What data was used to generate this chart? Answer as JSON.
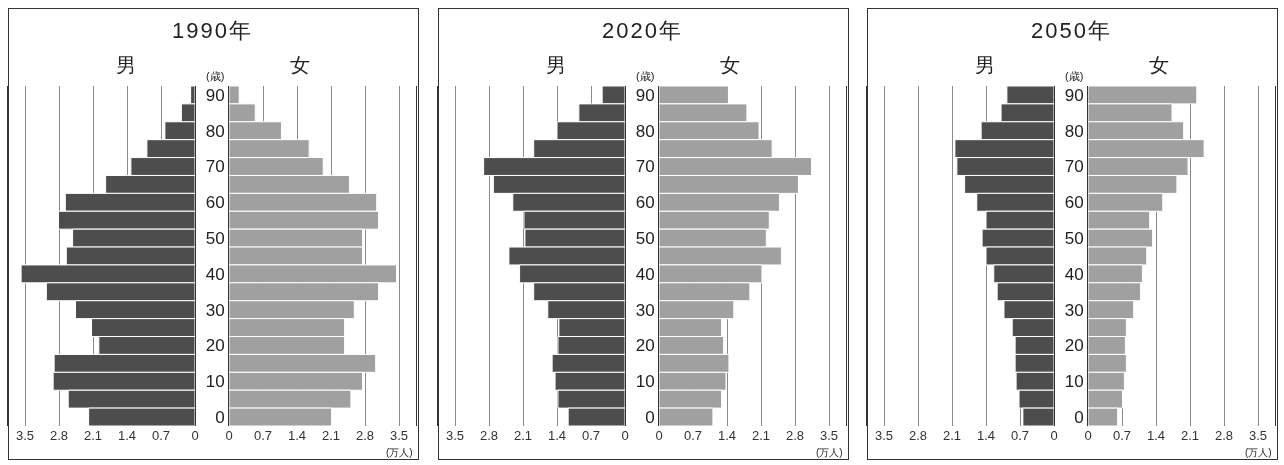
{
  "chart_data": [
    {
      "type": "bar",
      "orientation": "horizontal",
      "title": "1990年",
      "categories": [
        "90",
        null,
        "80",
        null,
        "70",
        null,
        "60",
        null,
        "50",
        null,
        "40",
        null,
        "30",
        null,
        "20",
        null,
        "10",
        null,
        "0"
      ],
      "series": [
        {
          "name": "男",
          "color": "#4d4d4d",
          "values": [
            0.09,
            0.28,
            0.62,
            0.99,
            1.32,
            1.84,
            2.67,
            2.81,
            2.52,
            2.65,
            3.58,
            3.06,
            2.46,
            2.13,
            1.98,
            2.9,
            2.92,
            2.61,
            2.19
          ]
        }
      ],
      "xlim": [
        3.85,
        0
      ],
      "xticks": [
        0,
        0.7,
        1.4,
        2.1,
        2.8,
        3.5
      ],
      "grid": "x",
      "tick_labels": "x"
    },
    {
      "type": "bar",
      "orientation": "horizontal",
      "ylabel": "(歳)",
      "xlabel": "(万人)",
      "categories": [
        "90",
        null,
        "80",
        null,
        "70",
        null,
        "60",
        null,
        "50",
        null,
        "40",
        null,
        "30",
        null,
        "20",
        null,
        "10",
        null,
        "0"
      ],
      "series": [
        {
          "name": "女",
          "color": "#a0a0a0",
          "values": [
            0.21,
            0.54,
            1.08,
            1.65,
            1.94,
            2.48,
            3.04,
            3.08,
            2.75,
            2.75,
            3.45,
            3.08,
            2.58,
            2.38,
            2.38,
            3.02,
            2.75,
            2.51,
            2.11
          ]
        }
      ],
      "xlim": [
        0,
        3.85
      ],
      "xticks": [
        0,
        0.7,
        1.4,
        2.1,
        2.8,
        3.5
      ],
      "grid": "x"
    },
    {
      "type": "bar",
      "orientation": "horizontal",
      "title": "2020年",
      "categories": [
        "90",
        null,
        "80",
        null,
        "70",
        null,
        "60",
        null,
        "50",
        null,
        "40",
        null,
        "30",
        null,
        "20",
        null,
        "10",
        null,
        "0"
      ],
      "series": [
        {
          "name": "男",
          "color": "#4d4d4d",
          "values": [
            0.47,
            0.95,
            1.4,
            1.88,
            2.91,
            2.71,
            2.31,
            2.08,
            2.06,
            2.39,
            2.17,
            1.88,
            1.59,
            1.36,
            1.38,
            1.5,
            1.44,
            1.38,
            1.17
          ]
        }
      ],
      "xlim": [
        3.85,
        0
      ],
      "xticks": [
        0,
        0.7,
        1.4,
        2.1,
        2.8,
        3.5
      ],
      "grid": "x",
      "tick_labels": "x"
    },
    {
      "type": "bar",
      "orientation": "horizontal",
      "ylabel": "(歳)",
      "xlabel": "(万人)",
      "categories": [
        "90",
        null,
        "80",
        null,
        "70",
        null,
        "60",
        null,
        "50",
        null,
        "40",
        null,
        "30",
        null,
        "20",
        null,
        "10",
        null,
        "0"
      ],
      "series": [
        {
          "name": "女",
          "color": "#a0a0a0",
          "values": [
            1.43,
            1.81,
            2.06,
            2.33,
            3.14,
            2.87,
            2.48,
            2.27,
            2.21,
            2.52,
            2.12,
            1.87,
            1.54,
            1.29,
            1.33,
            1.44,
            1.38,
            1.29,
            1.11
          ]
        }
      ],
      "xlim": [
        0,
        3.85
      ],
      "xticks": [
        0,
        0.7,
        1.4,
        2.1,
        2.8,
        3.5
      ],
      "grid": "x"
    },
    {
      "type": "bar",
      "orientation": "horizontal",
      "title": "2050年",
      "categories": [
        "90",
        null,
        "80",
        null,
        "70",
        null,
        "60",
        null,
        "50",
        null,
        "40",
        null,
        "30",
        null,
        "20",
        null,
        "10",
        null,
        "0"
      ],
      "series": [
        {
          "name": "男",
          "color": "#4d4d4d",
          "values": [
            0.97,
            1.09,
            1.5,
            2.04,
            2.0,
            1.84,
            1.59,
            1.4,
            1.48,
            1.4,
            1.24,
            1.17,
            1.03,
            0.86,
            0.8,
            0.8,
            0.78,
            0.72,
            0.64
          ]
        }
      ],
      "xlim": [
        3.85,
        0
      ],
      "xticks": [
        0,
        0.7,
        1.4,
        2.1,
        2.8,
        3.5
      ],
      "grid": "x",
      "tick_labels": "x"
    },
    {
      "type": "bar",
      "orientation": "horizontal",
      "ylabel": "(歳)",
      "xlabel": "(万人)",
      "categories": [
        "90",
        null,
        "80",
        null,
        "70",
        null,
        "60",
        null,
        "50",
        null,
        "40",
        null,
        "30",
        null,
        "20",
        null,
        "10",
        null,
        "0"
      ],
      "series": [
        {
          "name": "女",
          "color": "#a0a0a0",
          "values": [
            2.24,
            1.73,
            1.97,
            2.39,
            2.06,
            1.83,
            1.54,
            1.27,
            1.33,
            1.21,
            1.12,
            1.08,
            0.94,
            0.79,
            0.77,
            0.79,
            0.75,
            0.71,
            0.61
          ]
        }
      ],
      "xlim": [
        0,
        3.85
      ],
      "xticks": [
        0,
        0.7,
        1.4,
        2.1,
        2.8,
        3.5
      ],
      "grid": "x"
    }
  ]
}
